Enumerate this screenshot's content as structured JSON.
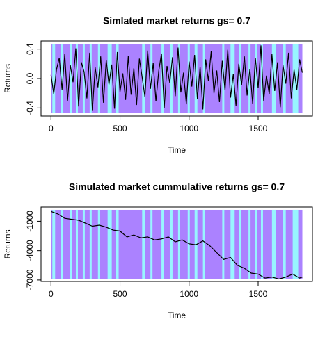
{
  "chart_data": [
    {
      "type": "line",
      "title": "Simlated market returns gs= 0.7",
      "x_label": "Time",
      "y_label": "Returns",
      "xlim": [
        -72,
        1893
      ],
      "ylim": [
        -0.51,
        0.51
      ],
      "xticks": [
        0,
        500,
        1000,
        1500
      ],
      "yticks": [
        -0.4,
        {
          "value": 0,
          "label": "0.0"
        },
        0.4
      ],
      "background_color": "#ab82ff",
      "band_color": "#98f5ff",
      "bands": [
        [
          10,
          30
        ],
        [
          70,
          85
        ],
        [
          135,
          150
        ],
        [
          180,
          195
        ],
        [
          230,
          245
        ],
        [
          280,
          295
        ],
        [
          340,
          355
        ],
        [
          410,
          440
        ],
        [
          470,
          490
        ],
        [
          660,
          680
        ],
        [
          720,
          735
        ],
        [
          800,
          815
        ],
        [
          860,
          880
        ],
        [
          920,
          935
        ],
        [
          990,
          1005
        ],
        [
          1040,
          1060
        ],
        [
          1100,
          1115
        ],
        [
          1240,
          1255
        ],
        [
          1300,
          1330
        ],
        [
          1360,
          1375
        ],
        [
          1430,
          1445
        ],
        [
          1480,
          1495
        ],
        [
          1520,
          1535
        ],
        [
          1600,
          1630
        ],
        [
          1680,
          1700
        ],
        [
          1750,
          1790
        ]
      ],
      "x": [
        0,
        20,
        40,
        60,
        80,
        100,
        120,
        140,
        160,
        180,
        200,
        220,
        240,
        260,
        280,
        300,
        320,
        340,
        360,
        380,
        400,
        420,
        440,
        460,
        480,
        500,
        520,
        540,
        560,
        580,
        600,
        620,
        640,
        660,
        680,
        700,
        720,
        740,
        760,
        780,
        800,
        820,
        840,
        860,
        880,
        900,
        920,
        940,
        960,
        980,
        1000,
        1020,
        1040,
        1060,
        1080,
        1100,
        1120,
        1140,
        1160,
        1180,
        1200,
        1220,
        1240,
        1260,
        1280,
        1300,
        1320,
        1340,
        1360,
        1380,
        1400,
        1420,
        1440,
        1460,
        1480,
        1500,
        1520,
        1540,
        1560,
        1580,
        1600,
        1620,
        1640,
        1660,
        1680,
        1700,
        1720,
        1740,
        1760,
        1780,
        1800,
        1820
      ],
      "series": [
        {
          "color": "#000000",
          "values": [
            0.05,
            -0.21,
            0.12,
            0.28,
            -0.15,
            0.33,
            -0.3,
            0.18,
            -0.05,
            0.41,
            -0.38,
            0.22,
            0.09,
            -0.27,
            0.35,
            -0.44,
            0.15,
            -0.12,
            0.3,
            -0.33,
            0.25,
            -0.08,
            0.19,
            -0.41,
            0.36,
            -0.18,
            0.07,
            -0.29,
            0.31,
            -0.22,
            0.14,
            -0.36,
            0.27,
            0.02,
            -0.25,
            0.38,
            -0.14,
            0.21,
            -0.31,
            0.1,
            0.34,
            -0.4,
            0.17,
            -0.06,
            0.29,
            -0.24,
            0.42,
            -0.19,
            0.08,
            -0.35,
            0.23,
            -0.11,
            0.32,
            -0.28,
            0.16,
            -0.42,
            0.26,
            -0.03,
            0.37,
            -0.2,
            0.11,
            -0.32,
            0.24,
            -0.16,
            0.39,
            -0.26,
            0.06,
            -0.37,
            0.2,
            -0.09,
            0.3,
            -0.23,
            0.13,
            -0.34,
            0.28,
            -0.13,
            0.45,
            -0.3,
            0.04,
            -0.21,
            0.33,
            -0.17,
            0.22,
            -0.39,
            0.18,
            -0.07,
            0.35,
            -0.27,
            0.12,
            -0.15,
            0.26,
            0.08
          ]
        }
      ]
    },
    {
      "type": "line",
      "title": "Simulated market cummulative returns gs= 0.7",
      "x_label": "Time",
      "y_label": "Returns",
      "xlim": [
        -72,
        1893
      ],
      "ylim": [
        -7150,
        450
      ],
      "xticks": [
        0,
        500,
        1000,
        1500
      ],
      "yticks": [
        -7000,
        -4000,
        -1000
      ],
      "background_color": "#ab82ff",
      "band_color": "#98f5ff",
      "bands": [
        [
          10,
          30
        ],
        [
          70,
          85
        ],
        [
          135,
          150
        ],
        [
          180,
          195
        ],
        [
          230,
          245
        ],
        [
          280,
          295
        ],
        [
          340,
          355
        ],
        [
          410,
          440
        ],
        [
          470,
          490
        ],
        [
          660,
          680
        ],
        [
          720,
          735
        ],
        [
          800,
          815
        ],
        [
          860,
          880
        ],
        [
          920,
          935
        ],
        [
          990,
          1005
        ],
        [
          1040,
          1060
        ],
        [
          1100,
          1115
        ],
        [
          1240,
          1255
        ],
        [
          1300,
          1330
        ],
        [
          1360,
          1375
        ],
        [
          1430,
          1445
        ],
        [
          1480,
          1495
        ],
        [
          1520,
          1535
        ],
        [
          1600,
          1630
        ],
        [
          1680,
          1700
        ],
        [
          1750,
          1790
        ]
      ],
      "x": [
        0,
        50,
        100,
        150,
        200,
        250,
        300,
        350,
        400,
        450,
        500,
        550,
        600,
        650,
        700,
        750,
        800,
        850,
        900,
        950,
        1000,
        1050,
        1100,
        1150,
        1200,
        1250,
        1300,
        1350,
        1400,
        1450,
        1500,
        1550,
        1600,
        1650,
        1700,
        1750,
        1800,
        1820
      ],
      "series": [
        {
          "color": "#000000",
          "values": [
            0,
            -250,
            -700,
            -800,
            -900,
            -1200,
            -1500,
            -1400,
            -1600,
            -1900,
            -2000,
            -2600,
            -2400,
            -2700,
            -2600,
            -2900,
            -2800,
            -2600,
            -3100,
            -2900,
            -3300,
            -3400,
            -3000,
            -3500,
            -4200,
            -4900,
            -4700,
            -5500,
            -5800,
            -6300,
            -6400,
            -6800,
            -6700,
            -6900,
            -6700,
            -6400,
            -6800,
            -6700
          ]
        }
      ]
    }
  ]
}
